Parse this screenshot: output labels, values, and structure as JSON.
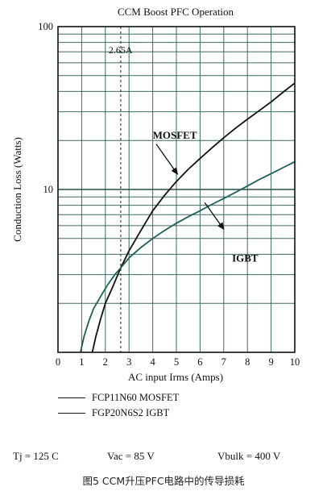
{
  "chart_data": {
    "type": "line",
    "title": "CCM Boost PFC Operation",
    "xlabel": "AC input Irms (Amps)",
    "ylabel": "Conduction Loss (Watts)",
    "xlim": [
      0,
      10
    ],
    "ylim": [
      1,
      100
    ],
    "y_scale": "log",
    "grid": true,
    "x_ticks": [
      "0",
      "1",
      "2",
      "3",
      "4",
      "5",
      "6",
      "7",
      "8",
      "9",
      "10"
    ],
    "y_ticks": [
      {
        "value": 10,
        "label": "10"
      },
      {
        "value": 100,
        "label": "100"
      }
    ],
    "reference_line": {
      "x": 2.65,
      "label": "2.65A"
    },
    "series": [
      {
        "name": "MOSFET",
        "color": "#111111",
        "points": [
          [
            1.45,
            1.0
          ],
          [
            1.6,
            1.25
          ],
          [
            1.8,
            1.6
          ],
          [
            2.0,
            2.0
          ],
          [
            2.3,
            2.5
          ],
          [
            2.65,
            3.3
          ],
          [
            3.0,
            4.2
          ],
          [
            3.5,
            5.6
          ],
          [
            4.0,
            7.4
          ],
          [
            4.5,
            9.2
          ],
          [
            5.0,
            11.2
          ],
          [
            5.5,
            13.3
          ],
          [
            6.0,
            15.5
          ],
          [
            6.5,
            18.0
          ],
          [
            7.0,
            20.8
          ],
          [
            7.5,
            23.8
          ],
          [
            8.0,
            27.0
          ],
          [
            8.5,
            30.5
          ],
          [
            9.0,
            34.5
          ],
          [
            9.5,
            39.5
          ],
          [
            10.0,
            45.0
          ]
        ]
      },
      {
        "name": "IGBT",
        "color": "#1f5f55",
        "points": [
          [
            0.95,
            1.0
          ],
          [
            1.1,
            1.25
          ],
          [
            1.3,
            1.55
          ],
          [
            1.5,
            1.85
          ],
          [
            1.8,
            2.2
          ],
          [
            2.1,
            2.6
          ],
          [
            2.4,
            3.0
          ],
          [
            2.65,
            3.3
          ],
          [
            3.0,
            3.8
          ],
          [
            3.5,
            4.4
          ],
          [
            4.0,
            5.0
          ],
          [
            4.5,
            5.6
          ],
          [
            5.0,
            6.2
          ],
          [
            5.5,
            6.8
          ],
          [
            6.0,
            7.4
          ],
          [
            6.5,
            8.1
          ],
          [
            7.0,
            8.8
          ],
          [
            7.5,
            9.6
          ],
          [
            8.0,
            10.5
          ],
          [
            8.5,
            11.5
          ],
          [
            9.0,
            12.5
          ],
          [
            9.5,
            13.6
          ],
          [
            10.0,
            14.8
          ]
        ]
      }
    ],
    "annotations": [
      {
        "text": "MOSFET",
        "label_at": [
          4.0,
          20.5
        ],
        "arrow_from": [
          4.15,
          19.0
        ],
        "arrow_to": [
          5.05,
          12.4
        ]
      },
      {
        "text": "IGBT",
        "label_at": [
          7.35,
          3.6
        ],
        "arrow_from": [
          6.2,
          8.3
        ],
        "arrow_to": [
          7.0,
          5.7
        ]
      }
    ]
  },
  "legend": [
    {
      "text": "FCP11N60 MOSFET"
    },
    {
      "text": "FGP20N6S2 IGBT"
    }
  ],
  "conditions": {
    "tj": "Tj = 125 C",
    "vac": "Vac = 85 V",
    "vbulk": "Vbulk = 400 V"
  },
  "caption": "图5 CCM升压PFC电路中的传导损耗"
}
